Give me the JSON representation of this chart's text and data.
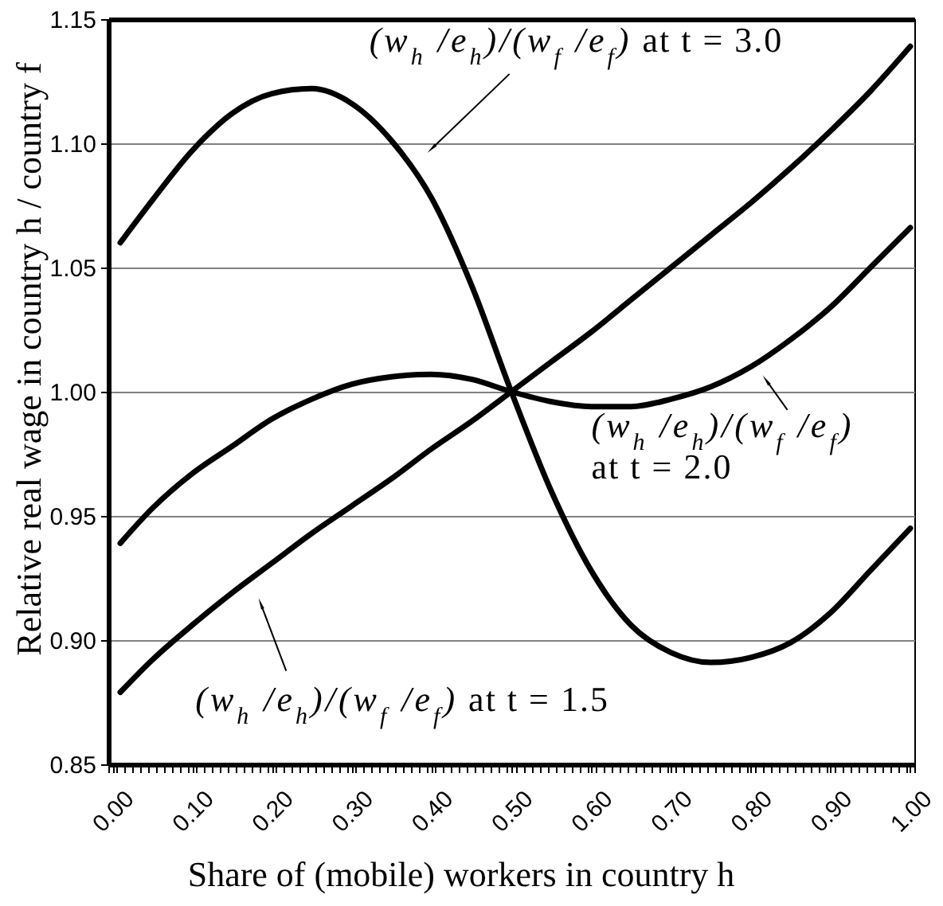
{
  "chart_data": {
    "type": "line",
    "xlabel": "Share of (mobile) workers in country h",
    "ylabel": "Relative real wage in country h / country f",
    "x": [
      0.01,
      0.05,
      0.1,
      0.15,
      0.2,
      0.25,
      0.3,
      0.35,
      0.4,
      0.45,
      0.5,
      0.55,
      0.6,
      0.65,
      0.7,
      0.75,
      0.8,
      0.85,
      0.9,
      0.95,
      1.0
    ],
    "series": [
      {
        "name": "(w$_{h}$ /e$_{h}$)/(w$_{f}$ /e$_{f}$) at t = 3.0",
        "color": "#000000",
        "values": [
          1.06,
          1.077,
          1.097,
          1.112,
          1.12,
          1.122,
          1.116,
          1.101,
          1.078,
          1.043,
          1.0,
          0.96,
          0.928,
          0.906,
          0.895,
          0.891,
          0.893,
          0.899,
          0.911,
          0.928,
          0.945
        ]
      },
      {
        "name": "(w$_{h}$ /e$_{h}$)/(w$_{f}$ /e$_{f}$) at t = 2.0",
        "color": "#000000",
        "values": [
          0.939,
          0.953,
          0.967,
          0.978,
          0.989,
          0.997,
          1.003,
          1.006,
          1.007,
          1.005,
          1.0,
          0.996,
          0.994,
          0.994,
          0.997,
          1.002,
          1.01,
          1.021,
          1.034,
          1.05,
          1.066
        ]
      },
      {
        "name": "(w$_{h}$ /e$_{h}$)/(w$_{f}$ /e$_{f}$) at t = 1.5",
        "color": "#000000",
        "values": [
          0.879,
          0.892,
          0.906,
          0.919,
          0.931,
          0.943,
          0.954,
          0.965,
          0.977,
          0.988,
          1.0,
          1.012,
          1.024,
          1.037,
          1.05,
          1.063,
          1.076,
          1.09,
          1.105,
          1.121,
          1.139
        ]
      }
    ],
    "xlim": [
      -0.005,
      1.005
    ],
    "xticks": [
      {
        "value": 0,
        "label": "0.00"
      },
      {
        "value": 0.1,
        "label": "0.10"
      },
      {
        "value": 0.2,
        "label": "0.20"
      },
      {
        "value": 0.3,
        "label": "0.30"
      },
      {
        "value": 0.4,
        "label": "0.40"
      },
      {
        "value": 0.5,
        "label": "0.50"
      },
      {
        "value": 0.6,
        "label": "0.60"
      },
      {
        "value": 0.7,
        "label": "0.70"
      },
      {
        "value": 0.8,
        "label": "0.80"
      },
      {
        "value": 0.9,
        "label": "0.90"
      },
      {
        "value": 1,
        "label": "1.00"
      },
      {
        "value": -0.005,
        "label": null
      },
      {
        "value": 0.005,
        "label": null
      },
      {
        "value": 0.015,
        "label": null
      },
      {
        "value": 0.025,
        "label": null
      },
      {
        "value": 0.035,
        "label": null
      },
      {
        "value": 0.045,
        "label": null
      },
      {
        "value": 0.055,
        "label": null
      },
      {
        "value": 0.065,
        "label": null
      },
      {
        "value": 0.075,
        "label": null
      },
      {
        "value": 0.085,
        "label": null
      },
      {
        "value": 0.095,
        "label": null
      },
      {
        "value": 0.105,
        "label": null
      },
      {
        "value": 0.115,
        "label": null
      },
      {
        "value": 0.125,
        "label": null
      },
      {
        "value": 0.135,
        "label": null
      },
      {
        "value": 0.145,
        "label": null
      },
      {
        "value": 0.155,
        "label": null
      },
      {
        "value": 0.165,
        "label": null
      },
      {
        "value": 0.175,
        "label": null
      },
      {
        "value": 0.185,
        "label": null
      },
      {
        "value": 0.195,
        "label": null
      },
      {
        "value": 0.205,
        "label": null
      },
      {
        "value": 0.215,
        "label": null
      },
      {
        "value": 0.225,
        "label": null
      },
      {
        "value": 0.235,
        "label": null
      },
      {
        "value": 0.245,
        "label": null
      },
      {
        "value": 0.255,
        "label": null
      },
      {
        "value": 0.265,
        "label": null
      },
      {
        "value": 0.275,
        "label": null
      },
      {
        "value": 0.285,
        "label": null
      },
      {
        "value": 0.295,
        "label": null
      },
      {
        "value": 0.305,
        "label": null
      },
      {
        "value": 0.315,
        "label": null
      },
      {
        "value": 0.325,
        "label": null
      },
      {
        "value": 0.335,
        "label": null
      },
      {
        "value": 0.345,
        "label": null
      },
      {
        "value": 0.355,
        "label": null
      },
      {
        "value": 0.365,
        "label": null
      },
      {
        "value": 0.375,
        "label": null
      },
      {
        "value": 0.385,
        "label": null
      },
      {
        "value": 0.395,
        "label": null
      },
      {
        "value": 0.405,
        "label": null
      },
      {
        "value": 0.415,
        "label": null
      },
      {
        "value": 0.425,
        "label": null
      },
      {
        "value": 0.435,
        "label": null
      },
      {
        "value": 0.445,
        "label": null
      },
      {
        "value": 0.455,
        "label": null
      },
      {
        "value": 0.465,
        "label": null
      },
      {
        "value": 0.475,
        "label": null
      },
      {
        "value": 0.485,
        "label": null
      },
      {
        "value": 0.495,
        "label": null
      },
      {
        "value": 0.505,
        "label": null
      },
      {
        "value": 0.515,
        "label": null
      },
      {
        "value": 0.525,
        "label": null
      },
      {
        "value": 0.535,
        "label": null
      },
      {
        "value": 0.545,
        "label": null
      },
      {
        "value": 0.555,
        "label": null
      },
      {
        "value": 0.565,
        "label": null
      },
      {
        "value": 0.575,
        "label": null
      },
      {
        "value": 0.585,
        "label": null
      },
      {
        "value": 0.595,
        "label": null
      },
      {
        "value": 0.605,
        "label": null
      },
      {
        "value": 0.615,
        "label": null
      },
      {
        "value": 0.625,
        "label": null
      },
      {
        "value": 0.635,
        "label": null
      },
      {
        "value": 0.645,
        "label": null
      },
      {
        "value": 0.655,
        "label": null
      },
      {
        "value": 0.665,
        "label": null
      },
      {
        "value": 0.675,
        "label": null
      },
      {
        "value": 0.685,
        "label": null
      },
      {
        "value": 0.695,
        "label": null
      },
      {
        "value": 0.705,
        "label": null
      },
      {
        "value": 0.715,
        "label": null
      },
      {
        "value": 0.725,
        "label": null
      },
      {
        "value": 0.735,
        "label": null
      },
      {
        "value": 0.745,
        "label": null
      },
      {
        "value": 0.755,
        "label": null
      },
      {
        "value": 0.765,
        "label": null
      },
      {
        "value": 0.775,
        "label": null
      },
      {
        "value": 0.785,
        "label": null
      },
      {
        "value": 0.795,
        "label": null
      },
      {
        "value": 0.805,
        "label": null
      },
      {
        "value": 0.815,
        "label": null
      },
      {
        "value": 0.825,
        "label": null
      },
      {
        "value": 0.835,
        "label": null
      },
      {
        "value": 0.845,
        "label": null
      },
      {
        "value": 0.855,
        "label": null
      },
      {
        "value": 0.865,
        "label": null
      },
      {
        "value": 0.875,
        "label": null
      },
      {
        "value": 0.885,
        "label": null
      },
      {
        "value": 0.895,
        "label": null
      },
      {
        "value": 0.905,
        "label": null
      },
      {
        "value": 0.915,
        "label": null
      },
      {
        "value": 0.925,
        "label": null
      },
      {
        "value": 0.935,
        "label": null
      },
      {
        "value": 0.945,
        "label": null
      },
      {
        "value": 0.955,
        "label": null
      },
      {
        "value": 0.965,
        "label": null
      },
      {
        "value": 0.975,
        "label": null
      },
      {
        "value": 0.985,
        "label": null
      },
      {
        "value": 0.995,
        "label": null
      },
      {
        "value": 1.005,
        "label": null
      }
    ],
    "ylim": [
      0.85,
      1.15
    ],
    "yticks": [
      0.85,
      {
        "value": 0.9,
        "label": "0.90"
      },
      0.95,
      {
        "value": 1,
        "label": "1.00"
      },
      1.05,
      {
        "value": 1.1,
        "label": "1.10"
      },
      1.15
    ],
    "grid": "y",
    "line_style": "solid"
  }
}
